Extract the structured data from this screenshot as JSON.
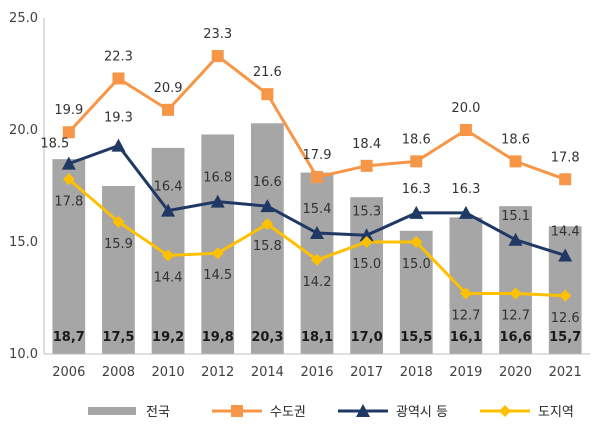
{
  "chart_data": {
    "type": "bar+line",
    "title": "",
    "xlabel": "",
    "ylabel": "",
    "categories": [
      "2006",
      "2008",
      "2010",
      "2012",
      "2014",
      "2016",
      "2017",
      "2018",
      "2019",
      "2020",
      "2021"
    ],
    "ylim": [
      10.0,
      25.0
    ],
    "yticks": [
      "10.0",
      "15.0",
      "20.0",
      "25.0"
    ],
    "legend_position": "bottom",
    "series": [
      {
        "name": "전국",
        "kind": "bar",
        "color": "#a6a6a6",
        "values": [
          18.7,
          17.5,
          19.2,
          19.8,
          20.3,
          18.1,
          17.0,
          15.5,
          16.1,
          16.6,
          15.7
        ],
        "labels": [
          "18,7",
          "17,5",
          "19,2",
          "19,8",
          "20,3",
          "18,1",
          "17,0",
          "15,5",
          "16,1",
          "16,6",
          "15,7"
        ]
      },
      {
        "name": "수도권",
        "kind": "line",
        "marker": "square",
        "color": "#f79646",
        "values": [
          19.9,
          22.3,
          20.9,
          23.3,
          21.6,
          17.9,
          18.4,
          18.6,
          20.0,
          18.6,
          17.8
        ],
        "labels": [
          "19.9",
          "22.3",
          "20.9",
          "23.3",
          "21.6",
          "17.9",
          "18.4",
          "18.6",
          "20.0",
          "18.6",
          "17.8"
        ]
      },
      {
        "name": "광역시 등",
        "kind": "line",
        "marker": "triangle",
        "color": "#1f3864",
        "values": [
          18.5,
          19.3,
          16.4,
          16.8,
          16.6,
          15.4,
          15.3,
          16.3,
          16.3,
          15.1,
          14.4
        ],
        "labels": [
          "18.5",
          "19.3",
          "16.4",
          "16.8",
          "16.6",
          "15.4",
          "15.3",
          "16.3",
          "16.3",
          "15.1",
          "14.4"
        ]
      },
      {
        "name": "도지역",
        "kind": "line",
        "marker": "diamond",
        "color": "#ffc000",
        "values": [
          17.8,
          15.9,
          14.4,
          14.5,
          15.8,
          14.2,
          15.0,
          15.0,
          12.7,
          12.7,
          12.6
        ],
        "labels": [
          "17.8",
          "15.9",
          "14.4",
          "14.5",
          "15.8",
          "14.2",
          "15.0",
          "15.0",
          "12.7",
          "12.7",
          "12.6"
        ]
      }
    ]
  }
}
